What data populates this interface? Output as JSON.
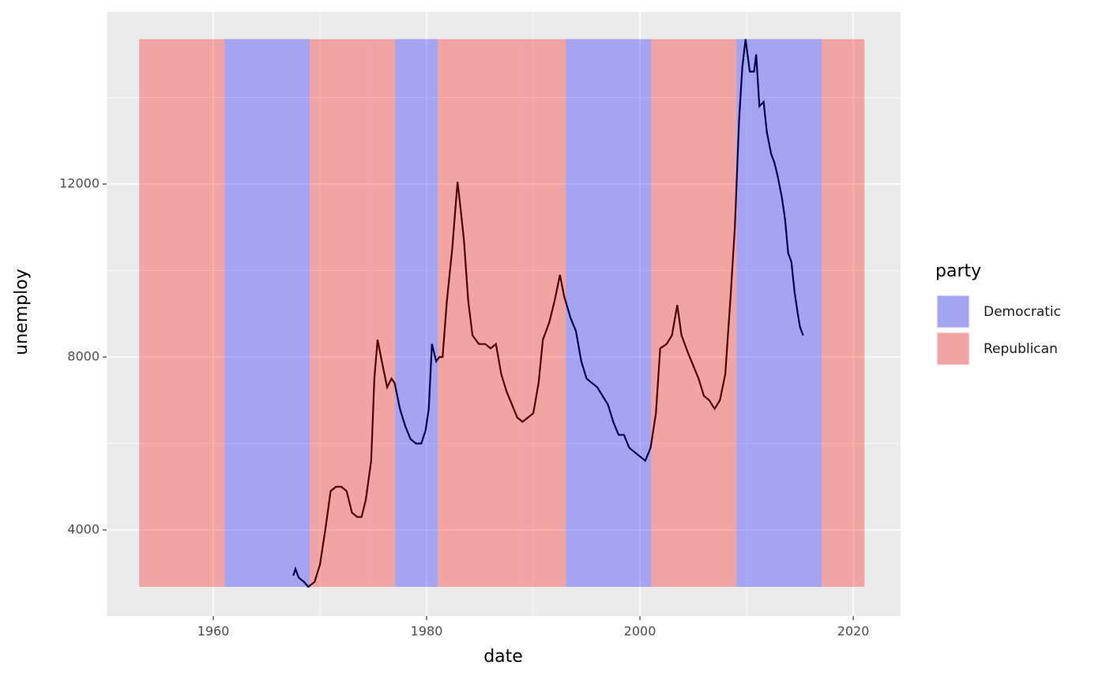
{
  "chart_data": {
    "type": "line",
    "x_label": "date",
    "y_label": "unemploy",
    "legend_title": "party",
    "xlim": [
      1950,
      2024.44
    ],
    "ylim": [
      2009,
      15982
    ],
    "xticks": [
      1960,
      1980,
      2000,
      2020
    ],
    "yticks": [
      4000,
      8000,
      12000
    ],
    "xminor": [
      1950,
      1970,
      1990,
      2010
    ],
    "yminor": [
      6000,
      10000,
      14000
    ],
    "grid": true,
    "legend": "right",
    "bands": [
      {
        "name": "Democratic",
        "color": "#0000ff",
        "opacity": 0.3,
        "ymin": 2685,
        "ymax": 15352,
        "intervals": [
          [
            1961.05,
            1963.89
          ],
          [
            1963.89,
            1969.05
          ],
          [
            1977.05,
            1981.05
          ],
          [
            1993.05,
            2001.05
          ],
          [
            2009.05,
            2017.05
          ]
        ]
      },
      {
        "name": "Republican",
        "color": "#ff0000",
        "opacity": 0.3,
        "ymin": 2685,
        "ymax": 15352,
        "intervals": [
          [
            1953.05,
            1961.05
          ],
          [
            1969.05,
            1974.6
          ],
          [
            1974.6,
            1977.05
          ],
          [
            1981.05,
            1989.05
          ],
          [
            1989.05,
            1993.05
          ],
          [
            2001.05,
            2009.05
          ],
          [
            2017.05,
            2021.05
          ]
        ]
      }
    ],
    "x": [
      1967.5,
      1967.7,
      1968.0,
      1968.5,
      1968.9,
      1969.5,
      1970.0,
      1970.5,
      1971.0,
      1971.5,
      1972.0,
      1972.5,
      1973.0,
      1973.5,
      1973.9,
      1974.3,
      1974.8,
      1975.1,
      1975.4,
      1975.8,
      1976.3,
      1976.7,
      1977.0,
      1977.5,
      1978.0,
      1978.5,
      1979.0,
      1979.5,
      1979.9,
      1980.2,
      1980.5,
      1980.9,
      1981.2,
      1981.5,
      1981.9,
      1982.4,
      1982.9,
      1983.2,
      1983.5,
      1983.9,
      1984.3,
      1984.9,
      1985.5,
      1986.0,
      1986.5,
      1987.0,
      1987.5,
      1988.0,
      1988.5,
      1989.0,
      1989.5,
      1990.0,
      1990.5,
      1990.9,
      1991.5,
      1992.0,
      1992.5,
      1992.9,
      1993.5,
      1994.0,
      1994.5,
      1995.0,
      1995.5,
      1996.0,
      1996.5,
      1997.0,
      1997.5,
      1998.0,
      1998.5,
      1999.0,
      1999.5,
      2000.0,
      2000.5,
      2001.0,
      2001.5,
      2001.9,
      2002.5,
      2003.0,
      2003.5,
      2003.9,
      2004.5,
      2005.0,
      2005.5,
      2006.0,
      2006.5,
      2007.0,
      2007.5,
      2008.0,
      2008.5,
      2008.9,
      2009.3,
      2009.6,
      2009.9,
      2010.3,
      2010.7,
      2010.9,
      2011.2,
      2011.6,
      2011.9,
      2012.3,
      2012.6,
      2012.9,
      2013.3,
      2013.6,
      2013.9,
      2014.2,
      2014.5,
      2014.8,
      2015.0,
      2015.3
    ],
    "series": [
      {
        "color": "#000000",
        "values": [
          2944,
          3100,
          2900,
          2800,
          2685,
          2800,
          3200,
          4000,
          4900,
          5000,
          5000,
          4900,
          4400,
          4300,
          4300,
          4700,
          5600,
          7500,
          8400,
          7900,
          7300,
          7500,
          7400,
          6800,
          6400,
          6100,
          6000,
          6000,
          6300,
          6800,
          8300,
          7900,
          8000,
          8000,
          9300,
          10500,
          12051,
          11400,
          10700,
          9300,
          8500,
          8300,
          8300,
          8200,
          8300,
          7600,
          7200,
          6900,
          6600,
          6500,
          6600,
          6700,
          7400,
          8400,
          8800,
          9300,
          9900,
          9400,
          8900,
          8600,
          7900,
          7500,
          7400,
          7300,
          7100,
          6900,
          6500,
          6200,
          6200,
          5900,
          5800,
          5700,
          5600,
          5900,
          6700,
          8200,
          8300,
          8500,
          9200,
          8500,
          8100,
          7800,
          7500,
          7100,
          7000,
          6800,
          7000,
          7600,
          9400,
          11000,
          13500,
          14700,
          15352,
          14600,
          14600,
          15000,
          13800,
          13900,
          13200,
          12700,
          12500,
          12200,
          11700,
          11200,
          10400,
          10200,
          9500,
          9000,
          8700,
          8500
        ]
      }
    ]
  }
}
